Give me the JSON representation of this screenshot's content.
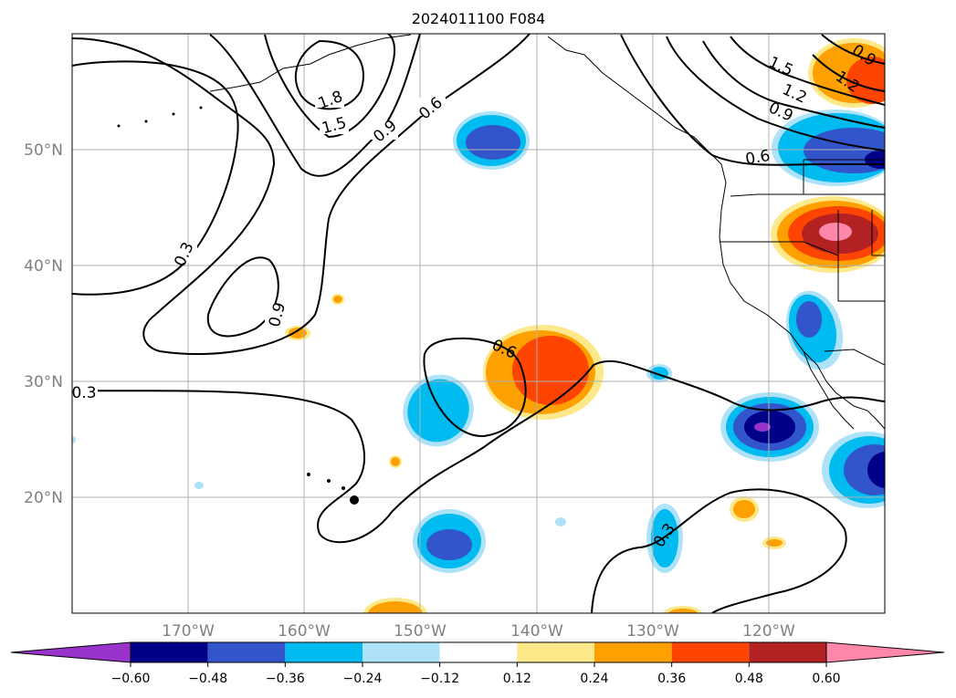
{
  "title": "2024011100 F084",
  "map": {
    "lon_range": [
      -180,
      -110
    ],
    "lat_range": [
      10,
      60
    ],
    "gridlines": true,
    "lat_labels": [
      {
        "lat": 50,
        "text": "50°N"
      },
      {
        "lat": 40,
        "text": "40°N"
      },
      {
        "lat": 30,
        "text": "30°N"
      },
      {
        "lat": 20,
        "text": "20°N"
      }
    ],
    "lon_labels": [
      {
        "lon": -170,
        "text": "170°W"
      },
      {
        "lon": -160,
        "text": "160°W"
      },
      {
        "lon": -150,
        "text": "150°W"
      },
      {
        "lon": -140,
        "text": "140°W"
      },
      {
        "lon": -130,
        "text": "130°W"
      },
      {
        "lon": -120,
        "text": "120°W"
      }
    ],
    "contour_labels": [
      "1.8",
      "1.5",
      "0.9",
      "0.6",
      "0.3",
      "0.9",
      "0.6",
      "0.3",
      "0.3",
      "1.5",
      "1.2",
      "0.9",
      "0.6",
      "1.2",
      "0.9"
    ]
  },
  "colorbar": {
    "boundaries": [
      -0.6,
      -0.48,
      -0.36,
      -0.24,
      -0.12,
      0.12,
      0.24,
      0.36,
      0.48,
      0.6
    ],
    "tick_labels": [
      "−0.60",
      "−0.48",
      "−0.36",
      "−0.24",
      "−0.12",
      "0.12",
      "0.24",
      "0.36",
      "0.48",
      "0.60"
    ],
    "colors": [
      "#9933cc",
      "#000088",
      "#3355cc",
      "#00bbf0",
      "#aee2f8",
      "#ffffff",
      "#fde88a",
      "#fda000",
      "#fd4400",
      "#b22222",
      "#ff88aa"
    ],
    "extend": "both"
  }
}
